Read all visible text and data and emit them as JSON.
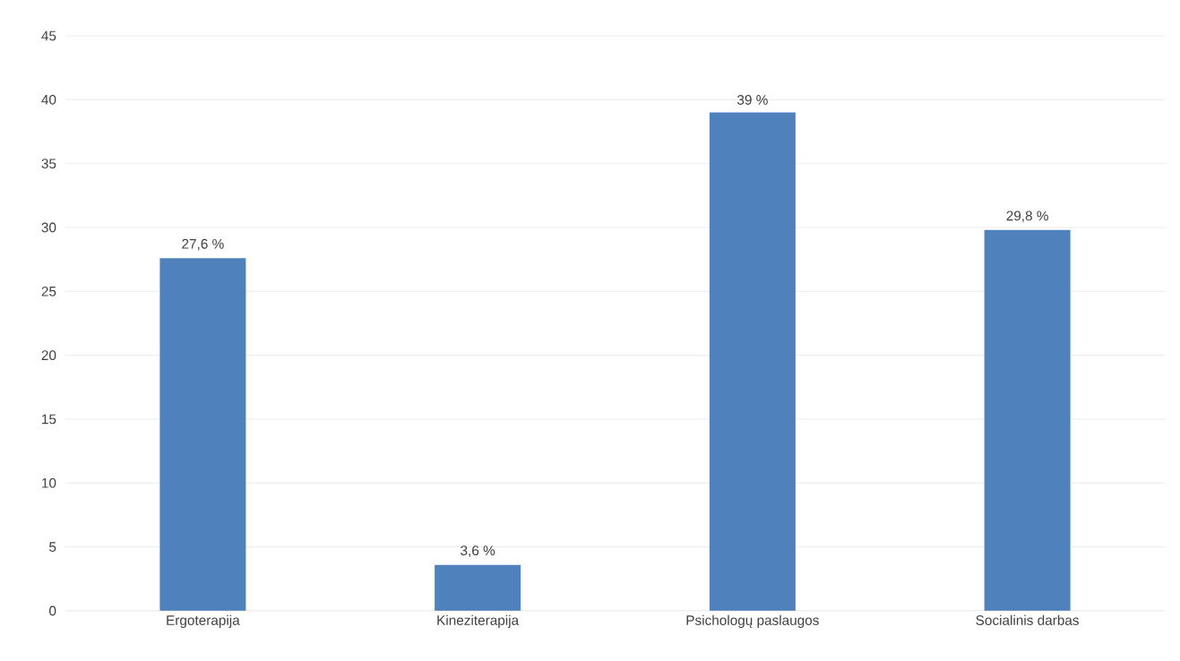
{
  "chart_data": {
    "type": "bar",
    "categories": [
      "Ergoterapija",
      "Kineziterapija",
      "Psichologų paslaugos",
      "Socialinis darbas"
    ],
    "values": [
      27.6,
      3.6,
      39,
      29.8
    ],
    "value_labels": [
      "27,6 %",
      "3,6 %",
      "39 %",
      "29,8 %"
    ],
    "color": "#4f81bd",
    "ylim": [
      0,
      45
    ],
    "yticks": [
      0,
      5,
      10,
      15,
      20,
      25,
      30,
      35,
      40,
      45
    ],
    "grid": "y"
  }
}
